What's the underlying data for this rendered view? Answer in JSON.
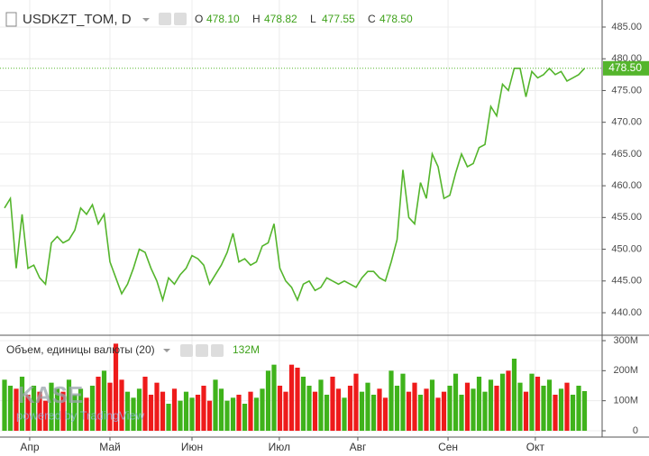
{
  "chart_data": [
    {
      "type": "line",
      "title": "USDKZT_TOM, D",
      "ohlc": [
        {
          "label": "O",
          "value": "478.10"
        },
        {
          "label": "H",
          "value": "478.82"
        },
        {
          "label": "L",
          "value": "477.55"
        },
        {
          "label": "C",
          "value": "478.50"
        }
      ],
      "values": [
        456.5,
        458,
        447,
        455.5,
        447,
        447.5,
        445.5,
        444.5,
        451,
        452,
        451,
        451.5,
        453,
        456.5,
        455.5,
        457,
        454,
        455.5,
        448,
        445.5,
        443,
        444.5,
        447,
        450,
        449.5,
        447,
        445,
        442,
        445.5,
        444.5,
        446,
        447,
        449,
        448.5,
        447.5,
        444.5,
        446,
        447.5,
        449.5,
        452.5,
        448,
        448.5,
        447.5,
        448,
        450.5,
        451,
        454,
        447,
        445,
        444,
        442,
        444.5,
        445,
        443.5,
        444,
        445.5,
        445,
        444.5,
        445,
        444.5,
        444,
        445.5,
        446.5,
        446.5,
        445.5,
        445,
        448,
        451.5,
        462.5,
        455,
        454,
        460.5,
        458,
        465,
        463,
        458,
        458.5,
        462,
        465,
        463,
        463.5,
        466,
        466.5,
        472.5,
        471,
        476,
        475,
        478.5,
        478.5,
        474,
        478,
        477,
        477.5,
        478.5,
        477.5,
        478,
        476.5,
        477,
        477.5,
        478.5
      ],
      "last_value_label": "478.50",
      "color": "#54b52c",
      "xlim": [
        -0.77,
        102
      ],
      "ylim": [
        436.45,
        489.26
      ],
      "yticks": [
        {
          "value": 440,
          "label": "440.00"
        },
        {
          "value": 445,
          "label": "445.00"
        },
        {
          "value": 450,
          "label": "450.00"
        },
        {
          "value": 455,
          "label": "455.00"
        },
        {
          "value": 460,
          "label": "460.00"
        },
        {
          "value": 465,
          "label": "465.00"
        },
        {
          "value": 470,
          "label": "470.00"
        },
        {
          "value": 475,
          "label": "475.00"
        },
        {
          "value": 480,
          "label": "480.00"
        },
        {
          "value": 485,
          "label": "485.00"
        }
      ],
      "grid": true
    },
    {
      "type": "bar",
      "title": "Объем, единицы валюты (20)",
      "current_value": "132M",
      "values": [
        170,
        150,
        140,
        180,
        120,
        150,
        130,
        100,
        160,
        140,
        130,
        170,
        120,
        140,
        110,
        150,
        180,
        200,
        160,
        290,
        170,
        130,
        110,
        140,
        180,
        120,
        160,
        130,
        90,
        140,
        100,
        130,
        110,
        120,
        150,
        100,
        170,
        140,
        100,
        110,
        120,
        90,
        130,
        110,
        140,
        200,
        220,
        150,
        130,
        220,
        210,
        180,
        150,
        130,
        170,
        120,
        180,
        140,
        110,
        150,
        190,
        130,
        160,
        120,
        140,
        110,
        200,
        150,
        190,
        130,
        160,
        120,
        140,
        170,
        110,
        130,
        150,
        190,
        120,
        160,
        140,
        180,
        130,
        170,
        150,
        190,
        200,
        240,
        160,
        130,
        190,
        180,
        150,
        170,
        120,
        140,
        160,
        120,
        150,
        132
      ],
      "up_color": "#3fb31b",
      "down_color": "#ee1b1b",
      "xlim": [
        -0.77,
        102
      ],
      "xticks": [
        {
          "value": 4.3,
          "label": "Апр"
        },
        {
          "value": 18,
          "label": "Май"
        },
        {
          "value": 32,
          "label": "Июн"
        },
        {
          "value": 46.9,
          "label": "Июл"
        },
        {
          "value": 60.3,
          "label": "Авг"
        },
        {
          "value": 75.7,
          "label": "Сен"
        },
        {
          "value": 90.6,
          "label": "Окт"
        }
      ],
      "ylim": [
        -15,
        318
      ],
      "yticks": [
        0,
        {
          "value": 100,
          "label": "100M"
        },
        {
          "value": 200,
          "label": "200M"
        },
        {
          "value": 300,
          "label": "300M"
        }
      ],
      "grid": true
    },
    {
      "type": "watermark",
      "logo": "KASE",
      "credit": "powered by TradingView"
    }
  ]
}
